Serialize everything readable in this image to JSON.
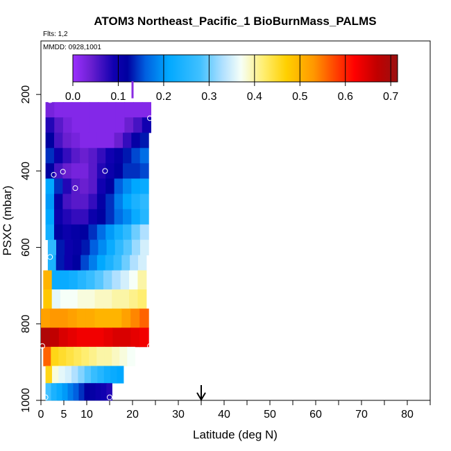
{
  "chart_data": {
    "type": "heatmap",
    "title": "ATOM3 Northeast_Pacific_1 BioBurnMass_PALMS",
    "annotations": [
      "Flts: 1,2",
      "MMDD: 0928,1001"
    ],
    "xlabel": "Latitude (deg N)",
    "ylabel": "PSXC (mbar)",
    "xlim": [
      0,
      85
    ],
    "ylim": [
      1000,
      60
    ],
    "y_reversed": true,
    "x_ticks_labeled": [
      "0",
      "5",
      "10",
      "20",
      "30",
      "40",
      "50",
      "60",
      "70",
      "80"
    ],
    "x_tick_values": [
      0,
      5,
      10,
      20,
      30,
      40,
      50,
      60,
      70,
      80
    ],
    "x_minor_ticks": [
      15,
      25,
      35,
      45,
      55,
      65,
      75,
      85
    ],
    "y_ticks": [
      "200",
      "400",
      "600",
      "800",
      "1000"
    ],
    "y_tick_values": [
      200,
      400,
      600,
      800,
      1000
    ],
    "colorbar": {
      "ticks": [
        "0.0",
        "0.1",
        "0.2",
        "0.3",
        "0.4",
        "0.5",
        "0.6",
        "0.7"
      ],
      "tick_values": [
        0.0,
        0.1,
        0.2,
        0.3,
        0.4,
        0.5,
        0.6,
        0.7
      ],
      "range": [
        0,
        0.715
      ],
      "stops": [
        {
          "v": 0.0,
          "c": "#9b30ff"
        },
        {
          "v": 0.04,
          "c": "#6a1fd0"
        },
        {
          "v": 0.09,
          "c": "#1000b0"
        },
        {
          "v": 0.12,
          "c": "#0000a0"
        },
        {
          "v": 0.16,
          "c": "#0060e0"
        },
        {
          "v": 0.21,
          "c": "#00a8ff"
        },
        {
          "v": 0.28,
          "c": "#40c0ff"
        },
        {
          "v": 0.33,
          "c": "#b0e0ff"
        },
        {
          "v": 0.37,
          "c": "#f6fff8"
        },
        {
          "v": 0.42,
          "c": "#ffee70"
        },
        {
          "v": 0.47,
          "c": "#ffd000"
        },
        {
          "v": 0.53,
          "c": "#ff9800"
        },
        {
          "v": 0.58,
          "c": "#ff4000"
        },
        {
          "v": 0.62,
          "c": "#ff0000"
        },
        {
          "v": 0.67,
          "c": "#c00000"
        },
        {
          "v": 0.715,
          "c": "#9a1010"
        }
      ]
    },
    "layers": [
      {
        "p_top": 220,
        "p_bot": 260,
        "x0": 1.0,
        "x1": 24.0,
        "values": [
          0.03,
          0.02,
          0.02,
          0.02,
          0.02,
          0.02,
          0.02,
          0.02,
          0.02,
          0.02,
          0.02,
          0.02
        ]
      },
      {
        "p_top": 260,
        "p_bot": 300,
        "x0": 1.0,
        "x1": 24.0,
        "values": [
          0.08,
          0.05,
          0.03,
          0.02,
          0.02,
          0.02,
          0.02,
          0.02,
          0.02,
          0.04,
          0.06,
          0.09
        ]
      },
      {
        "p_top": 300,
        "p_bot": 340,
        "x0": 1.0,
        "x1": 23.5,
        "values": [
          0.12,
          0.06,
          0.04,
          0.03,
          0.02,
          0.02,
          0.02,
          0.02,
          0.04,
          0.07,
          0.11,
          0.13
        ]
      },
      {
        "p_top": 340,
        "p_bot": 380,
        "x0": 1.0,
        "x1": 23.5,
        "values": [
          0.14,
          0.1,
          0.07,
          0.05,
          0.04,
          0.05,
          0.07,
          0.09,
          0.11,
          0.13,
          0.15,
          0.17
        ]
      },
      {
        "p_top": 380,
        "p_bot": 420,
        "x0": 1.0,
        "x1": 23.5,
        "values": [
          0.12,
          0.06,
          0.04,
          0.03,
          0.03,
          0.05,
          0.08,
          0.1,
          0.12,
          0.14,
          0.14,
          0.15
        ]
      },
      {
        "p_top": 420,
        "p_bot": 460,
        "x0": 1.0,
        "x1": 23.5,
        "values": [
          0.21,
          0.14,
          0.08,
          0.05,
          0.04,
          0.05,
          0.09,
          0.12,
          0.16,
          0.19,
          0.21,
          0.22
        ]
      },
      {
        "p_top": 460,
        "p_bot": 500,
        "x0": 1.0,
        "x1": 23.5,
        "values": [
          0.2,
          0.11,
          0.06,
          0.05,
          0.05,
          0.07,
          0.11,
          0.14,
          0.18,
          0.21,
          0.24,
          0.26
        ]
      },
      {
        "p_top": 500,
        "p_bot": 540,
        "x0": 1.0,
        "x1": 23.5,
        "values": [
          0.21,
          0.1,
          0.08,
          0.07,
          0.07,
          0.1,
          0.12,
          0.14,
          0.17,
          0.19,
          0.22,
          0.25
        ]
      },
      {
        "p_top": 540,
        "p_bot": 580,
        "x0": 1.0,
        "x1": 23.5,
        "values": [
          0.23,
          0.12,
          0.1,
          0.11,
          0.12,
          0.14,
          0.17,
          0.2,
          0.23,
          0.26,
          0.3,
          0.33
        ]
      },
      {
        "p_top": 580,
        "p_bot": 620,
        "x0": 1.5,
        "x1": 23.5,
        "values": [
          0.26,
          0.13,
          0.1,
          0.11,
          0.13,
          0.16,
          0.19,
          0.22,
          0.26,
          0.29,
          0.32,
          0.35
        ]
      },
      {
        "p_top": 620,
        "p_bot": 660,
        "x0": 1.5,
        "x1": 23.0,
        "values": [
          0.24,
          0.13,
          0.1,
          0.12,
          0.15,
          0.18,
          0.21,
          0.24,
          0.27,
          0.3,
          0.33,
          0.35
        ]
      },
      {
        "p_top": 660,
        "p_bot": 710,
        "x0": 0.5,
        "x1": 23.0,
        "values": [
          0.5,
          0.22,
          0.22,
          0.23,
          0.25,
          0.27,
          0.29,
          0.31,
          0.33,
          0.35,
          0.37,
          0.4
        ]
      },
      {
        "p_top": 710,
        "p_bot": 760,
        "x0": 0.5,
        "x1": 23.0,
        "values": [
          0.48,
          0.36,
          0.37,
          0.37,
          0.38,
          0.38,
          0.39,
          0.39,
          0.4,
          0.4,
          0.41,
          0.42
        ]
      },
      {
        "p_top": 760,
        "p_bot": 810,
        "x0": 0.0,
        "x1": 23.5,
        "values": [
          0.52,
          0.53,
          0.53,
          0.52,
          0.51,
          0.51,
          0.5,
          0.5,
          0.5,
          0.52,
          0.54,
          0.56
        ]
      },
      {
        "p_top": 810,
        "p_bot": 860,
        "x0": 0.0,
        "x1": 23.5,
        "values": [
          0.69,
          0.67,
          0.65,
          0.64,
          0.63,
          0.63,
          0.63,
          0.64,
          0.65,
          0.65,
          0.64,
          0.63
        ]
      },
      {
        "p_top": 860,
        "p_bot": 910,
        "x0": 0.5,
        "x1": 20.5,
        "values": [
          0.56,
          0.46,
          0.45,
          0.44,
          0.43,
          0.42,
          0.41,
          0.4,
          0.4,
          0.39,
          0.38,
          0.37
        ]
      },
      {
        "p_top": 910,
        "p_bot": 955,
        "x0": 1.0,
        "x1": 18.0,
        "values": [
          0.46,
          0.38,
          0.36,
          0.35,
          0.33,
          0.31,
          0.29,
          0.27,
          0.25,
          0.23,
          0.22,
          0.21
        ]
      },
      {
        "p_top": 955,
        "p_bot": 1000,
        "x0": 1.0,
        "x1": 15.5,
        "values": [
          0.28,
          0.24,
          0.22,
          0.2,
          0.18,
          0.16,
          0.14,
          0.12,
          0.11,
          0.1,
          0.09,
          0.08
        ]
      }
    ],
    "edge_strips": [
      {
        "p_top": 410,
        "p_bot": 580,
        "x0": 1.2,
        "x1": 2.0,
        "value": 0.22
      },
      {
        "p_top": 240,
        "p_bot": 660,
        "x0": 1.7,
        "x1": 2.6,
        "value": 0.1
      }
    ],
    "points": [
      {
        "lat": 2.0,
        "p": 215
      },
      {
        "lat": 19.5,
        "p": 195
      },
      {
        "lat": 23.8,
        "p": 262
      },
      {
        "lat": 2.8,
        "p": 410
      },
      {
        "lat": 4.8,
        "p": 402
      },
      {
        "lat": 14.0,
        "p": 400
      },
      {
        "lat": 7.5,
        "p": 445
      },
      {
        "lat": 2.0,
        "p": 625
      },
      {
        "lat": 0.3,
        "p": 858
      },
      {
        "lat": 23.8,
        "p": 858
      },
      {
        "lat": 1.0,
        "p": 992
      },
      {
        "lat": 15.0,
        "p": 992
      }
    ],
    "tick_mark": {
      "lat": 20.0,
      "p_from": 165,
      "p_to": 210
    },
    "arrow": {
      "lat": 35.0
    }
  }
}
